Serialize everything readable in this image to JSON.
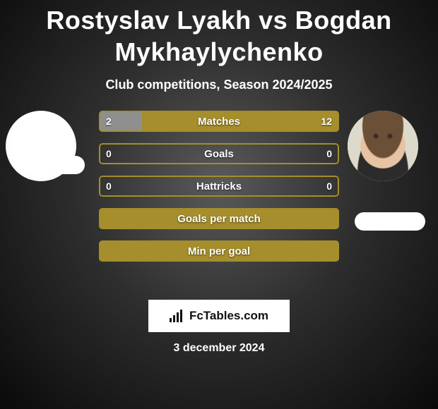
{
  "title": "Rostyslav Lyakh vs Bogdan Mykhaylychenko",
  "subtitle": "Club competitions, Season 2024/2025",
  "date": "3 december 2024",
  "footer_brand": "FcTables.com",
  "colors": {
    "olive": "#a58e2b",
    "olive_border": "#b39b30",
    "gray_fill": "#8f8f8f",
    "white": "#ffffff",
    "text_white": "#ffffff",
    "black": "#111111",
    "bg_inner": "#5a5a5a",
    "bg_outer": "#0a0a0a"
  },
  "players": {
    "left": {
      "name": "Rostyslav Lyakh",
      "has_photo": false
    },
    "right": {
      "name": "Bogdan Mykhaylychenko",
      "has_photo": true
    }
  },
  "stats": [
    {
      "label": "Matches",
      "left_value": "2",
      "right_value": "12",
      "left_fill_pct": 18,
      "right_fill_pct": 82,
      "left_color": "#8f8f8f",
      "right_color": "#a58e2b",
      "border_color": "#a58e2b",
      "show_values": true
    },
    {
      "label": "Goals",
      "left_value": "0",
      "right_value": "0",
      "left_fill_pct": 0,
      "right_fill_pct": 0,
      "left_color": "#a58e2b",
      "right_color": "#a58e2b",
      "border_color": "#a58e2b",
      "show_values": true
    },
    {
      "label": "Hattricks",
      "left_value": "0",
      "right_value": "0",
      "left_fill_pct": 0,
      "right_fill_pct": 0,
      "left_color": "#a58e2b",
      "right_color": "#a58e2b",
      "border_color": "#a58e2b",
      "show_values": true
    },
    {
      "label": "Goals per match",
      "left_value": "",
      "right_value": "",
      "left_fill_pct": 100,
      "right_fill_pct": 0,
      "left_color": "#a58e2b",
      "right_color": "#a58e2b",
      "border_color": "#a58e2b",
      "show_values": false
    },
    {
      "label": "Min per goal",
      "left_value": "",
      "right_value": "",
      "left_fill_pct": 100,
      "right_fill_pct": 0,
      "left_color": "#a58e2b",
      "right_color": "#a58e2b",
      "border_color": "#a58e2b",
      "show_values": false
    }
  ]
}
